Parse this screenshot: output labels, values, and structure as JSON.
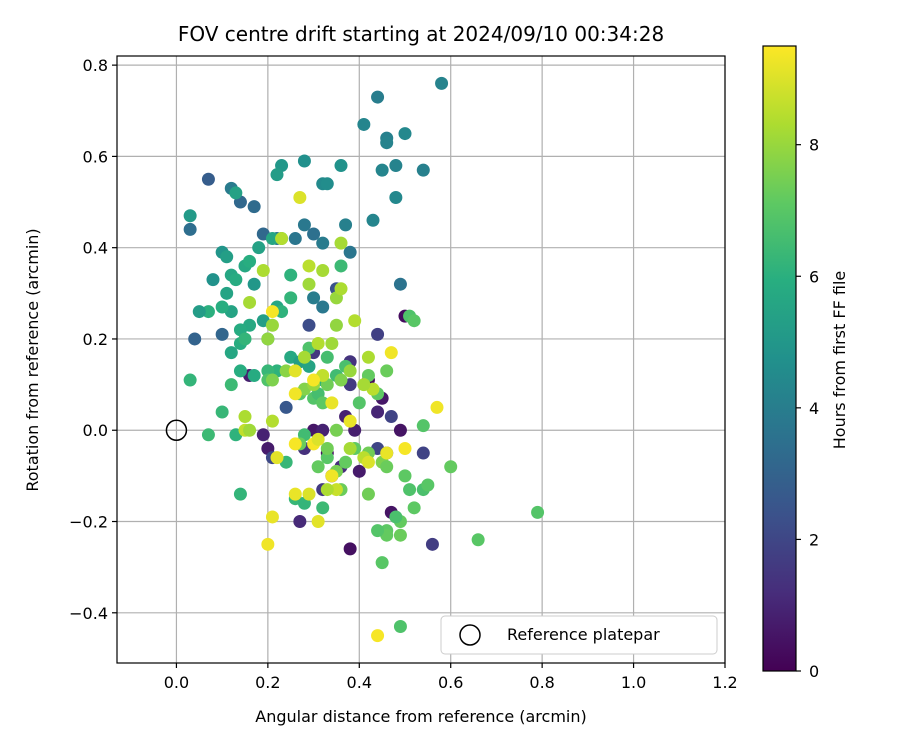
{
  "chart_data": {
    "type": "scatter",
    "title": "FOV centre drift starting at 2024/09/10 00:34:28",
    "xlabel": "Angular distance from reference (arcmin)",
    "ylabel": "Rotation from reference (arcmin)",
    "xlim": [
      -0.13,
      1.2
    ],
    "ylim": [
      -0.51,
      0.82
    ],
    "xticks": [
      0.0,
      0.2,
      0.4,
      0.6,
      0.8,
      1.0,
      1.2
    ],
    "yticks": [
      -0.4,
      -0.2,
      0.0,
      0.2,
      0.4,
      0.6,
      0.8
    ],
    "xtick_labels": [
      "0.0",
      "0.2",
      "0.4",
      "0.6",
      "0.8",
      "1.0",
      "1.2"
    ],
    "ytick_labels": [
      "−0.4",
      "−0.2",
      "0.0",
      "0.2",
      "0.4",
      "0.6",
      "0.8"
    ],
    "grid": true,
    "legend": {
      "position": "lower-right",
      "entries": [
        "Reference platepar"
      ]
    },
    "reference_point": {
      "x": 0.0,
      "y": 0.0
    },
    "colorbar": {
      "label": "Hours from first FF file",
      "range": [
        0,
        9.5
      ],
      "ticks": [
        0,
        2,
        4,
        6,
        8
      ],
      "tick_labels": [
        "0",
        "2",
        "4",
        "6",
        "8"
      ],
      "colormap": "viridis"
    },
    "points": [
      {
        "x": 0.38,
        "y": -0.26,
        "c": 0.4
      },
      {
        "x": 0.5,
        "y": 0.25,
        "c": 0.3
      },
      {
        "x": 0.47,
        "y": -0.18,
        "c": 0.5
      },
      {
        "x": 0.42,
        "y": 0.11,
        "c": 0.2
      },
      {
        "x": 0.45,
        "y": 0.07,
        "c": 0.6
      },
      {
        "x": 0.39,
        "y": 0.0,
        "c": 0.8
      },
      {
        "x": 0.37,
        "y": 0.03,
        "c": 0.9
      },
      {
        "x": 0.44,
        "y": 0.04,
        "c": 1.0
      },
      {
        "x": 0.4,
        "y": -0.09,
        "c": 0.7
      },
      {
        "x": 0.36,
        "y": -0.08,
        "c": 1.2
      },
      {
        "x": 0.27,
        "y": -0.2,
        "c": 1.1
      },
      {
        "x": 0.3,
        "y": 0.0,
        "c": 0.6
      },
      {
        "x": 0.32,
        "y": 0.0,
        "c": 0.9
      },
      {
        "x": 0.33,
        "y": -0.05,
        "c": 0.4
      },
      {
        "x": 0.28,
        "y": -0.04,
        "c": 1.3
      },
      {
        "x": 0.2,
        "y": -0.04,
        "c": 0.7
      },
      {
        "x": 0.19,
        "y": -0.01,
        "c": 0.9
      },
      {
        "x": 0.16,
        "y": 0.12,
        "c": 0.8
      },
      {
        "x": 0.34,
        "y": -0.1,
        "c": 0.3
      },
      {
        "x": 0.49,
        "y": 0.0,
        "c": 0.5
      },
      {
        "x": 0.38,
        "y": 0.15,
        "c": 1.4
      },
      {
        "x": 0.38,
        "y": 0.1,
        "c": 1.6
      },
      {
        "x": 0.44,
        "y": 0.21,
        "c": 1.8
      },
      {
        "x": 0.54,
        "y": -0.05,
        "c": 1.9
      },
      {
        "x": 0.56,
        "y": -0.25,
        "c": 1.7
      },
      {
        "x": 0.46,
        "y": -0.05,
        "c": 1.5
      },
      {
        "x": 0.44,
        "y": -0.04,
        "c": 2.0
      },
      {
        "x": 0.47,
        "y": 0.03,
        "c": 1.9
      },
      {
        "x": 0.3,
        "y": 0.17,
        "c": 1.5
      },
      {
        "x": 0.29,
        "y": 0.23,
        "c": 2.2
      },
      {
        "x": 0.35,
        "y": 0.31,
        "c": 2.4
      },
      {
        "x": 0.21,
        "y": -0.06,
        "c": 2.1
      },
      {
        "x": 0.32,
        "y": -0.13,
        "c": 1.6
      },
      {
        "x": 0.24,
        "y": 0.05,
        "c": 2.6
      },
      {
        "x": 0.04,
        "y": 0.2,
        "c": 3.0
      },
      {
        "x": 0.07,
        "y": 0.55,
        "c": 2.8
      },
      {
        "x": 0.14,
        "y": 0.5,
        "c": 3.2
      },
      {
        "x": 0.17,
        "y": 0.49,
        "c": 3.3
      },
      {
        "x": 0.03,
        "y": 0.44,
        "c": 3.4
      },
      {
        "x": 0.1,
        "y": 0.21,
        "c": 3.1
      },
      {
        "x": 0.12,
        "y": 0.53,
        "c": 3.9
      },
      {
        "x": 0.19,
        "y": 0.43,
        "c": 3.2
      },
      {
        "x": 0.22,
        "y": 0.42,
        "c": 3.6
      },
      {
        "x": 0.26,
        "y": 0.42,
        "c": 3.7
      },
      {
        "x": 0.28,
        "y": 0.45,
        "c": 3.8
      },
      {
        "x": 0.3,
        "y": 0.43,
        "c": 3.5
      },
      {
        "x": 0.32,
        "y": 0.41,
        "c": 3.9
      },
      {
        "x": 0.3,
        "y": 0.29,
        "c": 4.0
      },
      {
        "x": 0.32,
        "y": 0.27,
        "c": 3.8
      },
      {
        "x": 0.37,
        "y": 0.45,
        "c": 4.1
      },
      {
        "x": 0.38,
        "y": 0.39,
        "c": 3.7
      },
      {
        "x": 0.41,
        "y": 0.67,
        "c": 4.3
      },
      {
        "x": 0.44,
        "y": 0.73,
        "c": 4.0
      },
      {
        "x": 0.46,
        "y": 0.64,
        "c": 4.1
      },
      {
        "x": 0.46,
        "y": 0.63,
        "c": 4.2
      },
      {
        "x": 0.45,
        "y": 0.57,
        "c": 4.3
      },
      {
        "x": 0.48,
        "y": 0.58,
        "c": 4.2
      },
      {
        "x": 0.5,
        "y": 0.65,
        "c": 4.4
      },
      {
        "x": 0.54,
        "y": 0.57,
        "c": 4.1
      },
      {
        "x": 0.58,
        "y": 0.76,
        "c": 4.2
      },
      {
        "x": 0.48,
        "y": 0.51,
        "c": 4.4
      },
      {
        "x": 0.43,
        "y": 0.46,
        "c": 4.3
      },
      {
        "x": 0.49,
        "y": 0.32,
        "c": 3.6
      },
      {
        "x": 0.32,
        "y": 0.54,
        "c": 4.5
      },
      {
        "x": 0.33,
        "y": 0.54,
        "c": 4.6
      },
      {
        "x": 0.28,
        "y": 0.59,
        "c": 4.7
      },
      {
        "x": 0.36,
        "y": 0.58,
        "c": 4.8
      },
      {
        "x": 0.23,
        "y": 0.58,
        "c": 5.0
      },
      {
        "x": 0.22,
        "y": 0.56,
        "c": 5.2
      },
      {
        "x": 0.13,
        "y": 0.52,
        "c": 5.4
      },
      {
        "x": 0.03,
        "y": 0.47,
        "c": 5.1
      },
      {
        "x": 0.1,
        "y": 0.39,
        "c": 4.9
      },
      {
        "x": 0.11,
        "y": 0.38,
        "c": 5.3
      },
      {
        "x": 0.12,
        "y": 0.34,
        "c": 5.6
      },
      {
        "x": 0.08,
        "y": 0.33,
        "c": 4.8
      },
      {
        "x": 0.11,
        "y": 0.3,
        "c": 5.5
      },
      {
        "x": 0.13,
        "y": 0.33,
        "c": 5.8
      },
      {
        "x": 0.15,
        "y": 0.36,
        "c": 5.7
      },
      {
        "x": 0.16,
        "y": 0.37,
        "c": 5.9
      },
      {
        "x": 0.17,
        "y": 0.32,
        "c": 5.0
      },
      {
        "x": 0.18,
        "y": 0.4,
        "c": 5.4
      },
      {
        "x": 0.21,
        "y": 0.42,
        "c": 5.6
      },
      {
        "x": 0.23,
        "y": 0.42,
        "c": 6.0
      },
      {
        "x": 0.25,
        "y": 0.34,
        "c": 6.1
      },
      {
        "x": 0.25,
        "y": 0.29,
        "c": 6.2
      },
      {
        "x": 0.22,
        "y": 0.27,
        "c": 5.6
      },
      {
        "x": 0.19,
        "y": 0.24,
        "c": 5.3
      },
      {
        "x": 0.2,
        "y": 0.2,
        "c": 5.4
      },
      {
        "x": 0.16,
        "y": 0.23,
        "c": 5.7
      },
      {
        "x": 0.14,
        "y": 0.22,
        "c": 5.8
      },
      {
        "x": 0.12,
        "y": 0.26,
        "c": 5.5
      },
      {
        "x": 0.1,
        "y": 0.27,
        "c": 5.9
      },
      {
        "x": 0.07,
        "y": 0.26,
        "c": 6.0
      },
      {
        "x": 0.05,
        "y": 0.26,
        "c": 5.2
      },
      {
        "x": 0.12,
        "y": 0.17,
        "c": 5.6
      },
      {
        "x": 0.14,
        "y": 0.19,
        "c": 5.9
      },
      {
        "x": 0.15,
        "y": 0.2,
        "c": 6.2
      },
      {
        "x": 0.23,
        "y": 0.26,
        "c": 6.1
      },
      {
        "x": 0.25,
        "y": 0.16,
        "c": 5.7
      },
      {
        "x": 0.27,
        "y": 0.15,
        "c": 5.3
      },
      {
        "x": 0.29,
        "y": 0.14,
        "c": 5.5
      },
      {
        "x": 0.31,
        "y": 0.11,
        "c": 6.0
      },
      {
        "x": 0.22,
        "y": 0.13,
        "c": 6.1
      },
      {
        "x": 0.2,
        "y": 0.13,
        "c": 6.3
      },
      {
        "x": 0.17,
        "y": 0.12,
        "c": 5.8
      },
      {
        "x": 0.14,
        "y": 0.13,
        "c": 5.9
      },
      {
        "x": 0.12,
        "y": 0.1,
        "c": 6.4
      },
      {
        "x": 0.03,
        "y": 0.11,
        "c": 6.2
      },
      {
        "x": 0.1,
        "y": 0.04,
        "c": 6.3
      },
      {
        "x": 0.07,
        "y": -0.01,
        "c": 6.4
      },
      {
        "x": 0.13,
        "y": -0.01,
        "c": 6.1
      },
      {
        "x": 0.14,
        "y": -0.14,
        "c": 6.2
      },
      {
        "x": 0.26,
        "y": -0.15,
        "c": 6.3
      },
      {
        "x": 0.28,
        "y": -0.16,
        "c": 6.2
      },
      {
        "x": 0.32,
        "y": -0.17,
        "c": 6.4
      },
      {
        "x": 0.24,
        "y": -0.07,
        "c": 6.3
      },
      {
        "x": 0.28,
        "y": -0.01,
        "c": 6.5
      },
      {
        "x": 0.29,
        "y": 0.18,
        "c": 6.8
      },
      {
        "x": 0.33,
        "y": 0.16,
        "c": 6.6
      },
      {
        "x": 0.36,
        "y": 0.36,
        "c": 6.4
      },
      {
        "x": 0.37,
        "y": 0.14,
        "c": 6.7
      },
      {
        "x": 0.35,
        "y": 0.12,
        "c": 6.5
      },
      {
        "x": 0.3,
        "y": 0.07,
        "c": 6.9
      },
      {
        "x": 0.31,
        "y": 0.08,
        "c": 6.6
      },
      {
        "x": 0.27,
        "y": 0.08,
        "c": 7.0
      },
      {
        "x": 0.2,
        "y": 0.11,
        "c": 6.8
      },
      {
        "x": 0.4,
        "y": 0.06,
        "c": 6.9
      },
      {
        "x": 0.44,
        "y": 0.08,
        "c": 7.1
      },
      {
        "x": 0.42,
        "y": 0.12,
        "c": 7.2
      },
      {
        "x": 0.46,
        "y": 0.13,
        "c": 7.3
      },
      {
        "x": 0.51,
        "y": 0.25,
        "c": 6.8
      },
      {
        "x": 0.52,
        "y": 0.24,
        "c": 7.0
      },
      {
        "x": 0.54,
        "y": 0.01,
        "c": 6.9
      },
      {
        "x": 0.54,
        "y": -0.13,
        "c": 6.7
      },
      {
        "x": 0.55,
        "y": -0.12,
        "c": 7.0
      },
      {
        "x": 0.5,
        "y": -0.1,
        "c": 7.1
      },
      {
        "x": 0.51,
        "y": -0.13,
        "c": 6.8
      },
      {
        "x": 0.49,
        "y": -0.2,
        "c": 7.2
      },
      {
        "x": 0.48,
        "y": -0.19,
        "c": 6.7
      },
      {
        "x": 0.46,
        "y": -0.22,
        "c": 7.1
      },
      {
        "x": 0.46,
        "y": -0.23,
        "c": 7.2
      },
      {
        "x": 0.44,
        "y": -0.22,
        "c": 6.9
      },
      {
        "x": 0.49,
        "y": -0.23,
        "c": 7.3
      },
      {
        "x": 0.45,
        "y": -0.29,
        "c": 7.0
      },
      {
        "x": 0.49,
        "y": -0.43,
        "c": 6.8
      },
      {
        "x": 0.52,
        "y": -0.17,
        "c": 7.1
      },
      {
        "x": 0.6,
        "y": -0.08,
        "c": 7.2
      },
      {
        "x": 0.66,
        "y": -0.24,
        "c": 7.0
      },
      {
        "x": 0.79,
        "y": -0.18,
        "c": 6.9
      },
      {
        "x": 0.42,
        "y": -0.14,
        "c": 7.4
      },
      {
        "x": 0.36,
        "y": -0.13,
        "c": 7.3
      },
      {
        "x": 0.35,
        "y": -0.09,
        "c": 7.5
      },
      {
        "x": 0.37,
        "y": -0.07,
        "c": 7.2
      },
      {
        "x": 0.39,
        "y": -0.04,
        "c": 7.1
      },
      {
        "x": 0.42,
        "y": -0.05,
        "c": 7.4
      },
      {
        "x": 0.45,
        "y": -0.07,
        "c": 7.6
      },
      {
        "x": 0.46,
        "y": -0.08,
        "c": 7.3
      },
      {
        "x": 0.33,
        "y": -0.06,
        "c": 7.0
      },
      {
        "x": 0.33,
        "y": -0.04,
        "c": 7.4
      },
      {
        "x": 0.31,
        "y": -0.08,
        "c": 7.2
      },
      {
        "x": 0.27,
        "y": -0.03,
        "c": 7.3
      },
      {
        "x": 0.35,
        "y": 0.0,
        "c": 7.5
      },
      {
        "x": 0.32,
        "y": 0.06,
        "c": 7.1
      },
      {
        "x": 0.33,
        "y": 0.1,
        "c": 7.4
      },
      {
        "x": 0.36,
        "y": 0.11,
        "c": 7.6
      },
      {
        "x": 0.28,
        "y": 0.09,
        "c": 7.7
      },
      {
        "x": 0.24,
        "y": 0.13,
        "c": 7.8
      },
      {
        "x": 0.21,
        "y": 0.11,
        "c": 7.6
      },
      {
        "x": 0.2,
        "y": 0.2,
        "c": 7.9
      },
      {
        "x": 0.21,
        "y": 0.23,
        "c": 8.0
      },
      {
        "x": 0.16,
        "y": 0.28,
        "c": 8.2
      },
      {
        "x": 0.19,
        "y": 0.35,
        "c": 8.3
      },
      {
        "x": 0.23,
        "y": 0.42,
        "c": 8.4
      },
      {
        "x": 0.29,
        "y": 0.36,
        "c": 8.5
      },
      {
        "x": 0.29,
        "y": 0.32,
        "c": 8.1
      },
      {
        "x": 0.32,
        "y": 0.35,
        "c": 8.2
      },
      {
        "x": 0.35,
        "y": 0.29,
        "c": 8.0
      },
      {
        "x": 0.36,
        "y": 0.31,
        "c": 8.3
      },
      {
        "x": 0.39,
        "y": 0.24,
        "c": 8.4
      },
      {
        "x": 0.36,
        "y": 0.41,
        "c": 8.2
      },
      {
        "x": 0.35,
        "y": 0.23,
        "c": 7.9
      },
      {
        "x": 0.34,
        "y": 0.19,
        "c": 8.1
      },
      {
        "x": 0.31,
        "y": 0.19,
        "c": 8.4
      },
      {
        "x": 0.28,
        "y": 0.16,
        "c": 8.2
      },
      {
        "x": 0.3,
        "y": 0.1,
        "c": 8.0
      },
      {
        "x": 0.32,
        "y": 0.12,
        "c": 8.6
      },
      {
        "x": 0.42,
        "y": 0.16,
        "c": 8.3
      },
      {
        "x": 0.43,
        "y": 0.09,
        "c": 8.5
      },
      {
        "x": 0.38,
        "y": 0.13,
        "c": 8.0
      },
      {
        "x": 0.41,
        "y": 0.1,
        "c": 8.2
      },
      {
        "x": 0.15,
        "y": 0.03,
        "c": 8.3
      },
      {
        "x": 0.21,
        "y": 0.02,
        "c": 8.4
      },
      {
        "x": 0.15,
        "y": 0.0,
        "c": 8.6
      },
      {
        "x": 0.16,
        "y": 0.0,
        "c": 8.1
      },
      {
        "x": 0.38,
        "y": -0.04,
        "c": 8.2
      },
      {
        "x": 0.41,
        "y": -0.06,
        "c": 8.5
      },
      {
        "x": 0.35,
        "y": -0.13,
        "c": 8.7
      },
      {
        "x": 0.33,
        "y": -0.13,
        "c": 8.3
      },
      {
        "x": 0.26,
        "y": -0.14,
        "c": 9.2
      },
      {
        "x": 0.29,
        "y": -0.14,
        "c": 9.0
      },
      {
        "x": 0.31,
        "y": -0.2,
        "c": 9.1
      },
      {
        "x": 0.34,
        "y": -0.1,
        "c": 9.3
      },
      {
        "x": 0.3,
        "y": -0.03,
        "c": 9.4
      },
      {
        "x": 0.31,
        "y": -0.02,
        "c": 9.0
      },
      {
        "x": 0.34,
        "y": 0.06,
        "c": 9.2
      },
      {
        "x": 0.3,
        "y": 0.11,
        "c": 9.4
      },
      {
        "x": 0.26,
        "y": 0.08,
        "c": 9.3
      },
      {
        "x": 0.26,
        "y": 0.13,
        "c": 9.1
      },
      {
        "x": 0.21,
        "y": 0.26,
        "c": 9.4
      },
      {
        "x": 0.27,
        "y": 0.51,
        "c": 9.0
      },
      {
        "x": 0.21,
        "y": -0.19,
        "c": 9.2
      },
      {
        "x": 0.2,
        "y": -0.25,
        "c": 9.3
      },
      {
        "x": 0.22,
        "y": -0.06,
        "c": 9.1
      },
      {
        "x": 0.26,
        "y": -0.03,
        "c": 9.4
      },
      {
        "x": 0.38,
        "y": 0.02,
        "c": 9.2
      },
      {
        "x": 0.42,
        "y": -0.07,
        "c": 9.0
      },
      {
        "x": 0.47,
        "y": 0.17,
        "c": 9.3
      },
      {
        "x": 0.5,
        "y": -0.04,
        "c": 9.4
      },
      {
        "x": 0.46,
        "y": -0.05,
        "c": 9.2
      },
      {
        "x": 0.57,
        "y": 0.05,
        "c": 9.3
      },
      {
        "x": 0.44,
        "y": -0.45,
        "c": 9.4
      }
    ]
  }
}
